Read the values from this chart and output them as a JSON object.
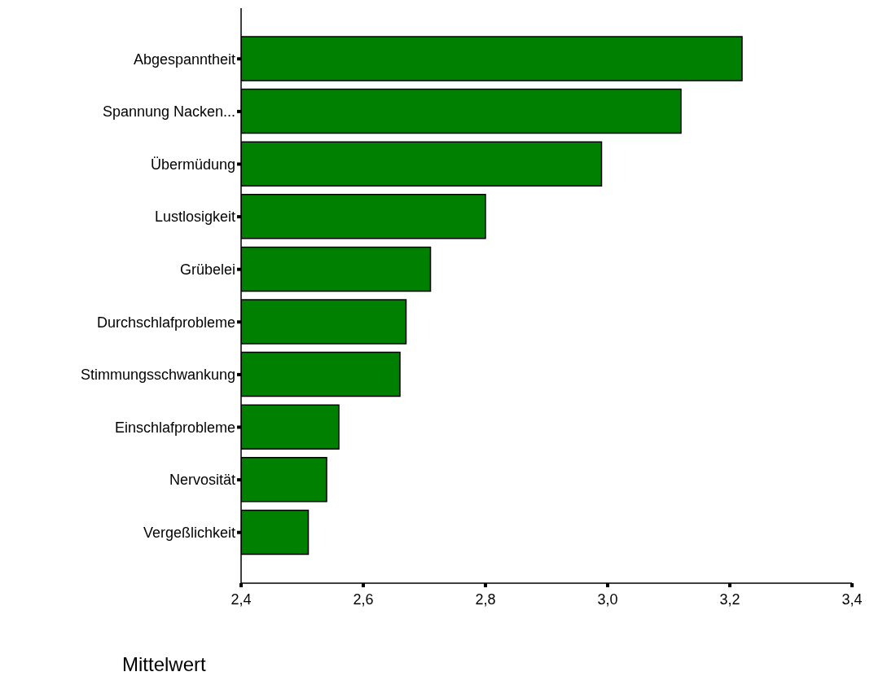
{
  "chart_data": {
    "type": "bar",
    "orientation": "horizontal",
    "xlabel": "Mittelwert",
    "categories": [
      "Abgespanntheit",
      "Spannung Nacken...",
      "Übermüdung",
      "Lustlosigkeit",
      "Grübelei",
      "Durchschlafprobleme",
      "Stimmungsschwankung",
      "Einschlafprobleme",
      "Nervosität",
      "Vergeßlichkeit"
    ],
    "values": [
      3.22,
      3.12,
      2.99,
      2.8,
      2.71,
      2.67,
      2.66,
      2.56,
      2.54,
      2.51
    ],
    "color": "#008000",
    "xlim": [
      2.4,
      3.4
    ],
    "xticks": [
      {
        "value": 2.4,
        "label": "2,4"
      },
      {
        "value": 2.6,
        "label": "2,6"
      },
      {
        "value": 2.8,
        "label": "2,8"
      },
      {
        "value": 3.0,
        "label": "3,0"
      },
      {
        "value": 3.2,
        "label": "3,2"
      },
      {
        "value": 3.4,
        "label": "3,4"
      }
    ],
    "grid": false,
    "legend": false
  }
}
